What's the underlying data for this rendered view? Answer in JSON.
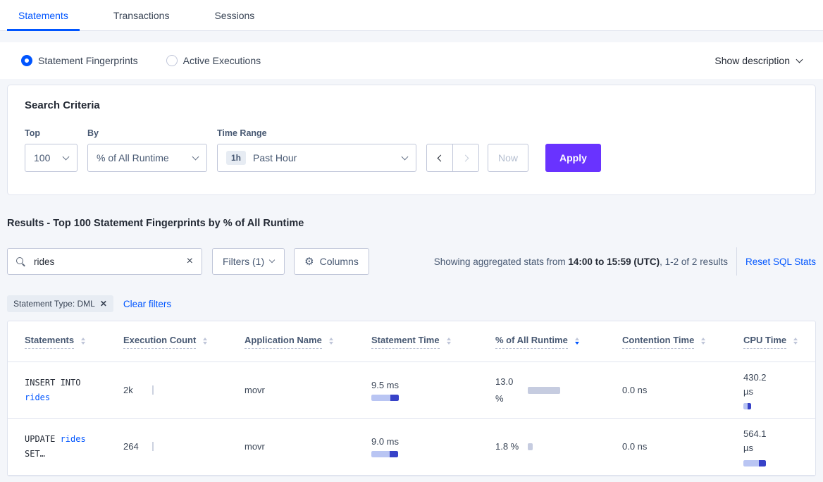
{
  "tabs": [
    {
      "label": "Statements",
      "active": true
    },
    {
      "label": "Transactions",
      "active": false
    },
    {
      "label": "Sessions",
      "active": false
    }
  ],
  "view_toggle": {
    "options": [
      {
        "label": "Statement Fingerprints",
        "selected": true
      },
      {
        "label": "Active Executions",
        "selected": false
      }
    ],
    "show_description": "Show description"
  },
  "search_criteria": {
    "title": "Search Criteria",
    "top_label": "Top",
    "top_value": "100",
    "by_label": "By",
    "by_value": "% of All Runtime",
    "time_range_label": "Time Range",
    "time_range_badge": "1h",
    "time_range_value": "Past Hour",
    "now_label": "Now",
    "apply_label": "Apply"
  },
  "results": {
    "heading": "Results - Top 100 Statement Fingerprints by % of All Runtime",
    "search_value": "rides",
    "filters_button": "Filters (1)",
    "columns_button": "Columns",
    "stats_prefix": "Showing aggregated stats from ",
    "stats_range": "14:00 to 15:59 (UTC)",
    "stats_suffix": ", 1-2 of 2 results",
    "reset_link": "Reset SQL Stats",
    "chip": "Statement Type: DML",
    "clear_filters": "Clear filters"
  },
  "table": {
    "columns": [
      {
        "label": "Statements",
        "sorted_desc": false
      },
      {
        "label": "Execution Count",
        "sorted_desc": false
      },
      {
        "label": "Application Name",
        "sorted_desc": false
      },
      {
        "label": "Statement Time",
        "sorted_desc": false
      },
      {
        "label": "% of All Runtime",
        "sorted_desc": true
      },
      {
        "label": "Contention Time",
        "sorted_desc": false
      },
      {
        "label": "CPU Time",
        "sorted_desc": false
      }
    ],
    "rows": [
      {
        "stmt_pre": "INSERT INTO\n",
        "stmt_link": "rides",
        "stmt_post": "",
        "execution_count": "2k",
        "application_name": "movr",
        "statement_time": "9.5 ms",
        "runtime_pct": "13.0 %",
        "contention_time": "0.0 ns",
        "cpu_time": "430.2 µs",
        "bars": {
          "stmt_light": 27,
          "stmt_dark": 12,
          "runtime": 46,
          "cpu_light": 6,
          "cpu_dark": 5
        }
      },
      {
        "stmt_pre": "UPDATE ",
        "stmt_link": "rides",
        "stmt_post": "\nSET…",
        "execution_count": "264",
        "application_name": "movr",
        "statement_time": "9.0 ms",
        "runtime_pct": "1.8 %",
        "contention_time": "0.0 ns",
        "cpu_time": "564.1 µs",
        "bars": {
          "stmt_light": 26,
          "stmt_dark": 12,
          "runtime": 7,
          "cpu_light": 22,
          "cpu_dark": 10
        }
      }
    ]
  }
}
